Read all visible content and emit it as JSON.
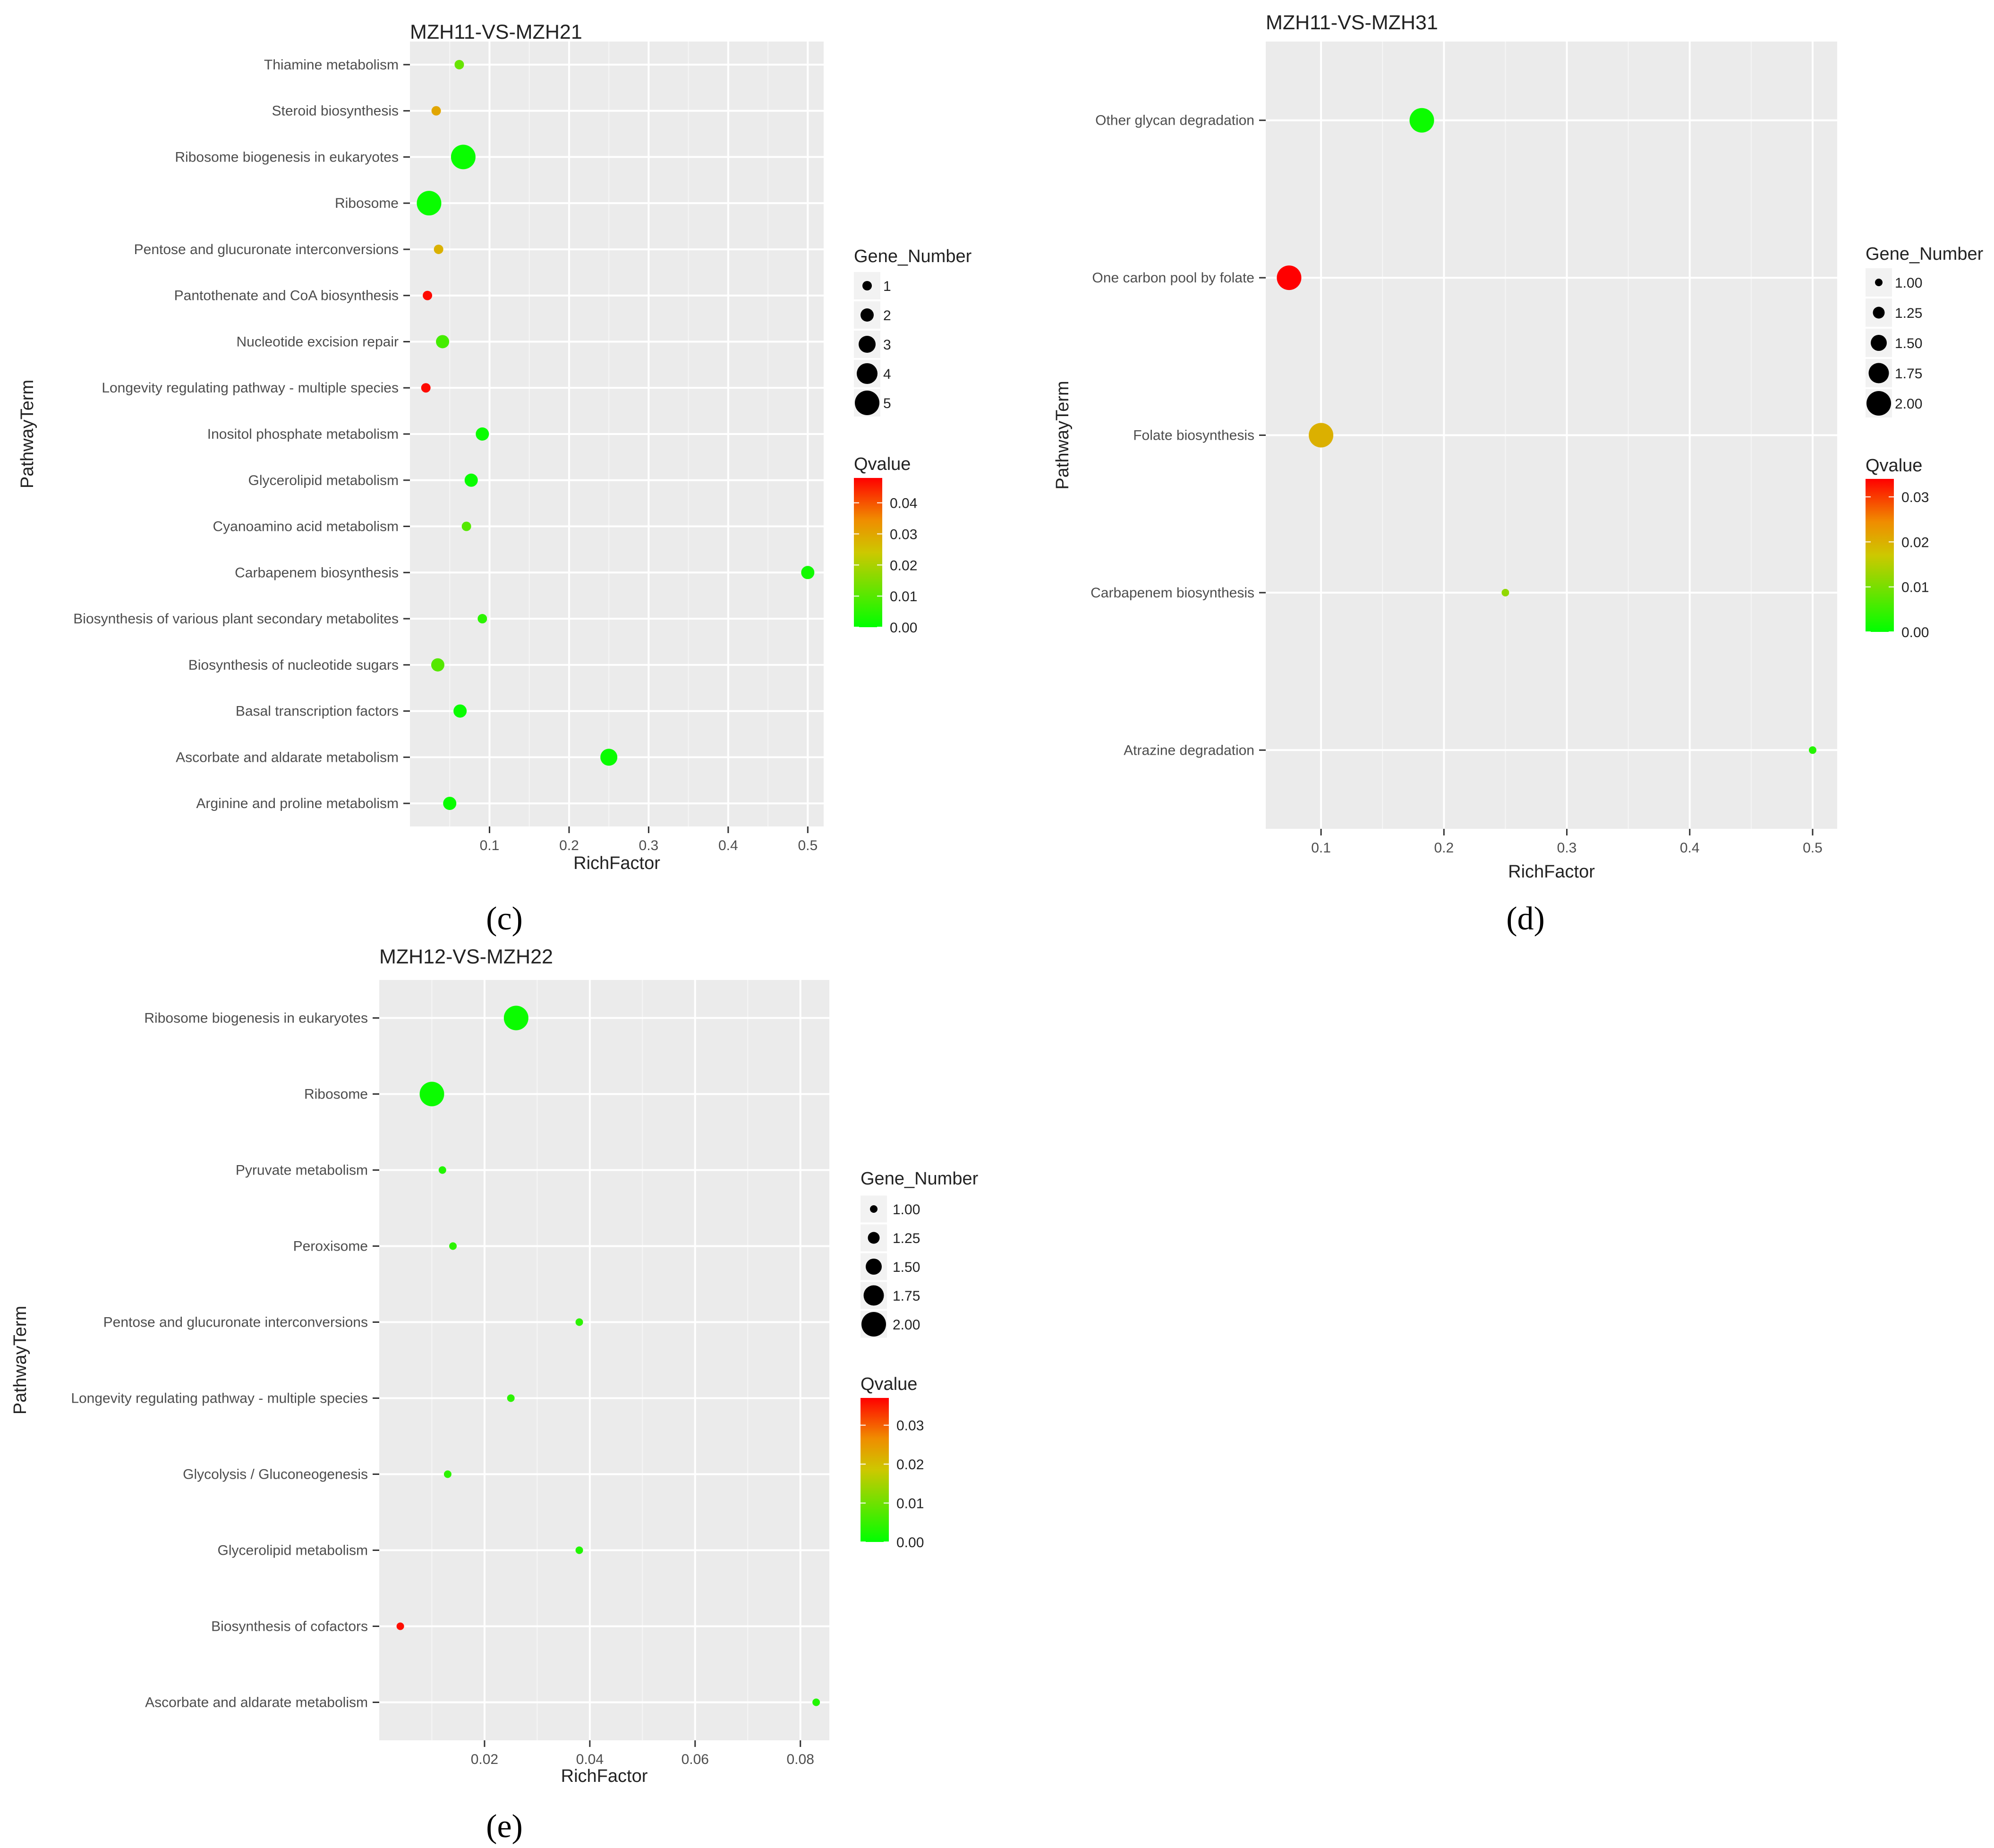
{
  "y_axis_label": "PathwayTerm",
  "x_axis_label": "RichFactor",
  "size_legend_title": "Gene_Number",
  "color_legend_title": "Qvalue",
  "chart_data": [
    {
      "type": "scatter",
      "panel_label": "(c)",
      "title": "MZH11-VS-MZH21",
      "xlabel": "RichFactor",
      "ylabel": "PathwayTerm",
      "xlim": [
        0,
        0.52
      ],
      "x_ticks": [
        0.1,
        0.2,
        0.3,
        0.4,
        0.5
      ],
      "x_tick_labels": [
        "0.1",
        "0.2",
        "0.3",
        "0.4",
        "0.5"
      ],
      "size_range": [
        1,
        5
      ],
      "size_legend_values": [
        1,
        2,
        3,
        4,
        5
      ],
      "size_legend_labels": [
        "1",
        "2",
        "3",
        "4",
        "5"
      ],
      "q_range": [
        0,
        0.048
      ],
      "q_legend_ticks": [
        0,
        0.01,
        0.02,
        0.03,
        0.04
      ],
      "q_legend_labels": [
        "0.00",
        "0.01",
        "0.02",
        "0.03",
        "0.04"
      ],
      "categories": [
        "Thiamine metabolism",
        "Steroid biosynthesis",
        "Ribosome biogenesis in eukaryotes",
        "Ribosome",
        "Pentose and glucuronate interconversions",
        "Pantothenate and CoA biosynthesis",
        "Nucleotide excision repair",
        "Longevity regulating pathway - multiple species",
        "Inositol phosphate metabolism",
        "Glycerolipid metabolism",
        "Cyanoamino acid metabolism",
        "Carbapenem biosynthesis",
        "Biosynthesis of various plant secondary metabolites",
        "Biosynthesis of nucleotide sugars",
        "Basal transcription factors",
        "Ascorbate and aldarate metabolism",
        "Arginine and proline metabolism"
      ],
      "points": [
        {
          "pathway": "Thiamine metabolism",
          "rich_factor": 0.062,
          "gene_number": 1,
          "qvalue": 0.012
        },
        {
          "pathway": "Steroid biosynthesis",
          "rich_factor": 0.033,
          "gene_number": 1,
          "qvalue": 0.03
        },
        {
          "pathway": "Ribosome biogenesis in eukaryotes",
          "rich_factor": 0.067,
          "gene_number": 5,
          "qvalue": 0.001
        },
        {
          "pathway": "Ribosome",
          "rich_factor": 0.024,
          "gene_number": 5,
          "qvalue": 0.001
        },
        {
          "pathway": "Pentose and glucuronate interconversions",
          "rich_factor": 0.036,
          "gene_number": 1,
          "qvalue": 0.028
        },
        {
          "pathway": "Pantothenate and CoA biosynthesis",
          "rich_factor": 0.022,
          "gene_number": 1,
          "qvalue": 0.047
        },
        {
          "pathway": "Nucleotide excision repair",
          "rich_factor": 0.041,
          "gene_number": 2,
          "qvalue": 0.008
        },
        {
          "pathway": "Longevity regulating pathway - multiple species",
          "rich_factor": 0.02,
          "gene_number": 1,
          "qvalue": 0.047
        },
        {
          "pathway": "Inositol phosphate metabolism",
          "rich_factor": 0.091,
          "gene_number": 2,
          "qvalue": 0.001
        },
        {
          "pathway": "Glycerolipid metabolism",
          "rich_factor": 0.077,
          "gene_number": 2,
          "qvalue": 0.001
        },
        {
          "pathway": "Cyanoamino acid metabolism",
          "rich_factor": 0.071,
          "gene_number": 1,
          "qvalue": 0.01
        },
        {
          "pathway": "Carbapenem biosynthesis",
          "rich_factor": 0.5,
          "gene_number": 2,
          "qvalue": 0.002
        },
        {
          "pathway": "Biosynthesis of various plant secondary metabolites",
          "rich_factor": 0.091,
          "gene_number": 1,
          "qvalue": 0.005
        },
        {
          "pathway": "Biosynthesis of nucleotide sugars",
          "rich_factor": 0.035,
          "gene_number": 2,
          "qvalue": 0.01
        },
        {
          "pathway": "Basal transcription factors",
          "rich_factor": 0.063,
          "gene_number": 2,
          "qvalue": 0.001
        },
        {
          "pathway": "Ascorbate and aldarate metabolism",
          "rich_factor": 0.25,
          "gene_number": 3,
          "qvalue": 0.001
        },
        {
          "pathway": "Arginine and proline metabolism",
          "rich_factor": 0.05,
          "gene_number": 2,
          "qvalue": 0.001
        }
      ]
    },
    {
      "type": "scatter",
      "panel_label": "(d)",
      "title": "MZH11-VS-MZH31",
      "xlabel": "RichFactor",
      "ylabel": "PathwayTerm",
      "xlim": [
        0.055,
        0.52
      ],
      "x_ticks": [
        0.1,
        0.2,
        0.3,
        0.4,
        0.5
      ],
      "x_tick_labels": [
        "0.1",
        "0.2",
        "0.3",
        "0.4",
        "0.5"
      ],
      "size_range": [
        1,
        2
      ],
      "size_legend_values": [
        1,
        1.25,
        1.5,
        1.75,
        2
      ],
      "size_legend_labels": [
        "1.00",
        "1.25",
        "1.50",
        "1.75",
        "2.00"
      ],
      "q_range": [
        0,
        0.034
      ],
      "q_legend_ticks": [
        0,
        0.01,
        0.02,
        0.03
      ],
      "q_legend_labels": [
        "0.00",
        "0.01",
        "0.02",
        "0.03"
      ],
      "categories": [
        "Other glycan degradation",
        "One carbon pool by folate",
        "Folate biosynthesis",
        "Carbapenem biosynthesis",
        "Atrazine degradation"
      ],
      "points": [
        {
          "pathway": "Other glycan degradation",
          "rich_factor": 0.182,
          "gene_number": 2,
          "qvalue": 0.001
        },
        {
          "pathway": "One carbon pool by folate",
          "rich_factor": 0.074,
          "gene_number": 2,
          "qvalue": 0.034
        },
        {
          "pathway": "Folate biosynthesis",
          "rich_factor": 0.1,
          "gene_number": 2,
          "qvalue": 0.02
        },
        {
          "pathway": "Carbapenem biosynthesis",
          "rich_factor": 0.25,
          "gene_number": 1,
          "qvalue": 0.012
        },
        {
          "pathway": "Atrazine degradation",
          "rich_factor": 0.5,
          "gene_number": 1,
          "qvalue": 0.003
        }
      ]
    },
    {
      "type": "scatter",
      "panel_label": "(e)",
      "title": "MZH12-VS-MZH22",
      "xlabel": "RichFactor",
      "ylabel": "PathwayTerm",
      "xlim": [
        0,
        0.0855
      ],
      "x_ticks": [
        0.02,
        0.04,
        0.06,
        0.08
      ],
      "x_tick_labels": [
        "0.02",
        "0.04",
        "0.06",
        "0.08"
      ],
      "size_range": [
        1,
        2
      ],
      "size_legend_values": [
        1,
        1.25,
        1.5,
        1.75,
        2
      ],
      "size_legend_labels": [
        "1.00",
        "1.25",
        "1.50",
        "1.75",
        "2.00"
      ],
      "q_range": [
        0,
        0.037
      ],
      "q_legend_ticks": [
        0,
        0.01,
        0.02,
        0.03
      ],
      "q_legend_labels": [
        "0.00",
        "0.01",
        "0.02",
        "0.03"
      ],
      "categories": [
        "Ribosome biogenesis in eukaryotes",
        "Ribosome",
        "Pyruvate metabolism",
        "Peroxisome",
        "Pentose and glucuronate interconversions",
        "Longevity regulating pathway - multiple species",
        "Glycolysis / Gluconeogenesis",
        "Glycerolipid metabolism",
        "Biosynthesis of cofactors",
        "Ascorbate and aldarate metabolism"
      ],
      "points": [
        {
          "pathway": "Ribosome biogenesis in eukaryotes",
          "rich_factor": 0.026,
          "gene_number": 2,
          "qvalue": 0.001
        },
        {
          "pathway": "Ribosome",
          "rich_factor": 0.01,
          "gene_number": 2,
          "qvalue": 0.001
        },
        {
          "pathway": "Pyruvate metabolism",
          "rich_factor": 0.012,
          "gene_number": 1,
          "qvalue": 0.003
        },
        {
          "pathway": "Peroxisome",
          "rich_factor": 0.014,
          "gene_number": 1,
          "qvalue": 0.004
        },
        {
          "pathway": "Pentose and glucuronate interconversions",
          "rich_factor": 0.038,
          "gene_number": 1,
          "qvalue": 0.004
        },
        {
          "pathway": "Longevity regulating pathway - multiple species",
          "rich_factor": 0.025,
          "gene_number": 1,
          "qvalue": 0.004
        },
        {
          "pathway": "Glycolysis / Gluconeogenesis",
          "rich_factor": 0.013,
          "gene_number": 1,
          "qvalue": 0.004
        },
        {
          "pathway": "Glycerolipid metabolism",
          "rich_factor": 0.038,
          "gene_number": 1,
          "qvalue": 0.003
        },
        {
          "pathway": "Biosynthesis of cofactors",
          "rich_factor": 0.004,
          "gene_number": 1,
          "qvalue": 0.036
        },
        {
          "pathway": "Ascorbate and aldarate metabolism",
          "rich_factor": 0.083,
          "gene_number": 1,
          "qvalue": 0.003
        }
      ]
    }
  ]
}
